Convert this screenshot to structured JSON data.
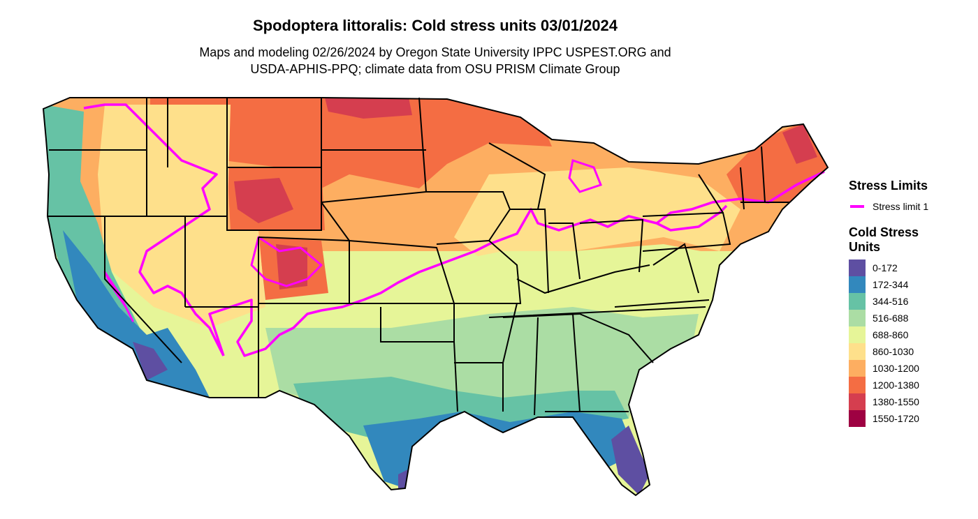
{
  "title": "Spodoptera littoralis: Cold stress units 03/01/2024",
  "subtitle_line1": "Maps and modeling 02/26/2024 by Oregon State University IPPC USPEST.ORG and",
  "subtitle_line2": "USDA-APHIS-PPQ; climate data from OSU PRISM Climate Group",
  "legend_stress": {
    "title": "Stress Limits",
    "label": "Stress limit 1",
    "color": "#ff00ff"
  },
  "legend_units": {
    "title_line1": "Cold Stress",
    "title_line2": "Units",
    "classes": [
      {
        "label": "0-172",
        "color": "#5e4fa2"
      },
      {
        "label": "172-344",
        "color": "#3288bd"
      },
      {
        "label": "344-516",
        "color": "#66c2a5"
      },
      {
        "label": "516-688",
        "color": "#abdda4"
      },
      {
        "label": "688-860",
        "color": "#e6f598"
      },
      {
        "label": "860-1030",
        "color": "#fee08b"
      },
      {
        "label": "1030-1200",
        "color": "#fdae61"
      },
      {
        "label": "1200-1380",
        "color": "#f46d43"
      },
      {
        "label": "1380-1550",
        "color": "#d53e4f"
      },
      {
        "label": "1550-1720",
        "color": "#9e0142"
      }
    ]
  }
}
